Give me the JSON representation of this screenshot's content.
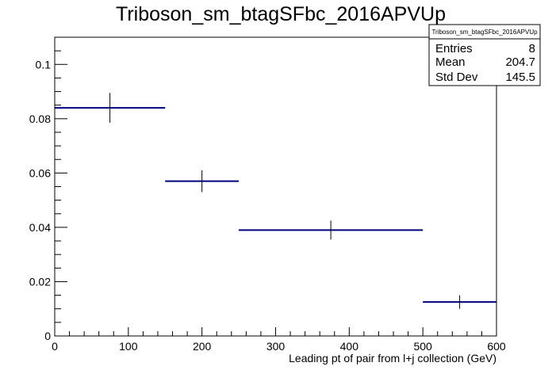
{
  "chart_data": {
    "type": "histogram",
    "title": "Triboson_sm_btagSFbc_2016APVUp",
    "xlabel": "Leading pt of pair from l+j collection (GeV)",
    "ylabel": "",
    "xlim": [
      0,
      600
    ],
    "ylim": [
      0,
      0.11
    ],
    "x_ticks": [
      0,
      100,
      200,
      300,
      400,
      500,
      600
    ],
    "x_tick_labels": [
      "0",
      "100",
      "200",
      "300",
      "400",
      "500",
      "600"
    ],
    "y_ticks": [
      0,
      0.02,
      0.04,
      0.06,
      0.08,
      0.1
    ],
    "y_tick_labels": [
      "0",
      "0.02",
      "0.04",
      "0.06",
      "0.08",
      "0.1"
    ],
    "bins": [
      {
        "x_low": 0,
        "x_high": 150,
        "x_center": 75,
        "value": 0.084,
        "error": 0.0055
      },
      {
        "x_low": 150,
        "x_high": 250,
        "x_center": 200,
        "value": 0.057,
        "error": 0.004
      },
      {
        "x_low": 250,
        "x_high": 500,
        "x_center": 375,
        "value": 0.039,
        "error": 0.0035
      },
      {
        "x_low": 500,
        "x_high": 600,
        "x_center": 550,
        "value": 0.0125,
        "error": 0.0025
      }
    ],
    "line_color": "#000080",
    "error_color": "#000000",
    "stats": {
      "name": "Triboson_sm_btagSFbc_2016APVUp",
      "rows": [
        {
          "label": "Entries",
          "value": "8"
        },
        {
          "label": "Mean",
          "value": "204.7"
        },
        {
          "label": "Std Dev",
          "value": "145.5"
        }
      ]
    }
  }
}
